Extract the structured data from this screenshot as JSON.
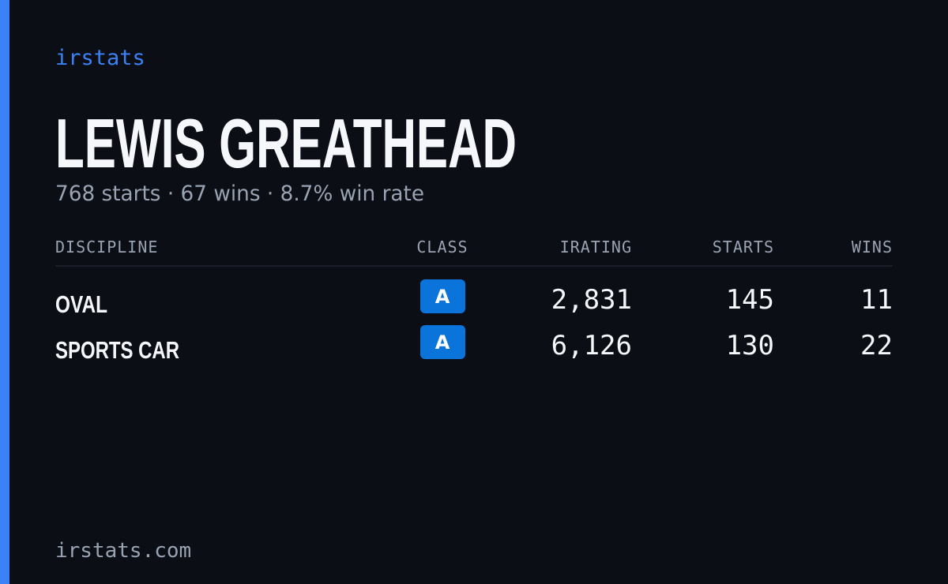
{
  "brand": "irstats",
  "player": {
    "name": "LEWIS GREATHEAD",
    "summary": "768 starts · 67 wins · 8.7% win rate"
  },
  "table": {
    "columns": [
      "DISCIPLINE",
      "CLASS",
      "IRATING",
      "STARTS",
      "WINS"
    ],
    "rows": [
      [
        "OVAL",
        "A",
        "2,831",
        "145",
        "11"
      ],
      [
        "SPORTS CAR",
        "A",
        "6,126",
        "130",
        "22"
      ]
    ]
  },
  "footer": "irstats.com"
}
